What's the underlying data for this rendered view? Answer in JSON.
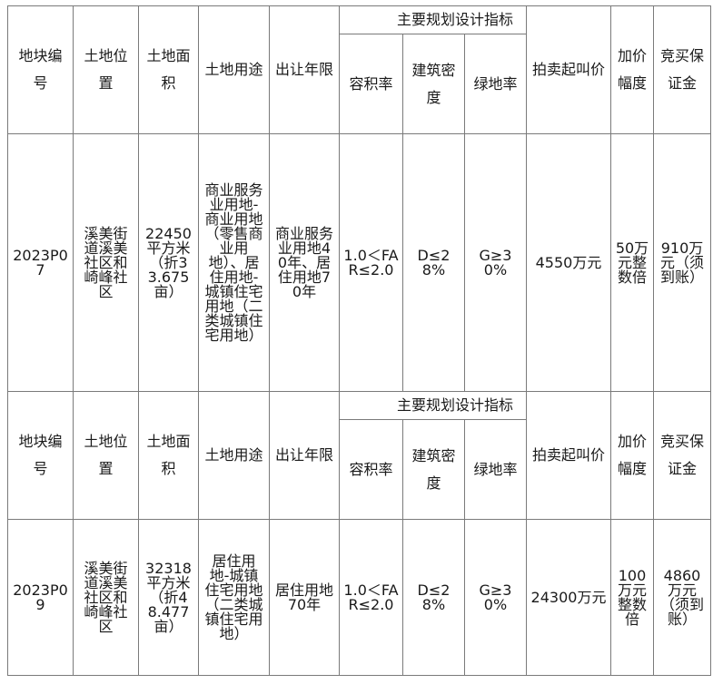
{
  "header_labels": {
    "plot_no": "地块编号",
    "location": "土地位置",
    "area": "土地面积",
    "use": "土地用途",
    "term": "出让年限",
    "indicators": "主要规划设计指标",
    "far": "容积率",
    "density": "建筑密度",
    "green": "绿地率",
    "start_price": "拍卖起叫价",
    "increment": "加价幅度",
    "deposit": "竞买保证金"
  },
  "rows": [
    {
      "plot_no": "2023P07",
      "location": "溪美街道溪美社区和崎峰社区",
      "area": "22450平方米（折33.675亩）",
      "use": "商业服务业用地-商业用地（零售商业用地）、居住用地-城镇住宅用地（二类城镇住宅用地）",
      "term": "商业服务业用地40年、居住用地70年",
      "far": "1.0＜FAR≤2.0",
      "density": "D≤28%",
      "green": "G≥30%",
      "start_price": "4550万元",
      "increment": "50万元整数倍",
      "deposit": "910万元（须到账）"
    },
    {
      "plot_no": "2023P09",
      "location": "溪美街道溪美社区和崎峰社区",
      "area": "32318平方米（折48.477亩）",
      "use": "居住用地-城镇住宅用地（二类城镇住宅用地）",
      "term": "居住用地70年",
      "far": "1.0＜FAR≤2.0",
      "density": "D≤28%",
      "green": "G≥30%",
      "start_price": "24300万元",
      "increment": "100万元整数倍",
      "deposit": "4860万元（须到账）"
    }
  ]
}
